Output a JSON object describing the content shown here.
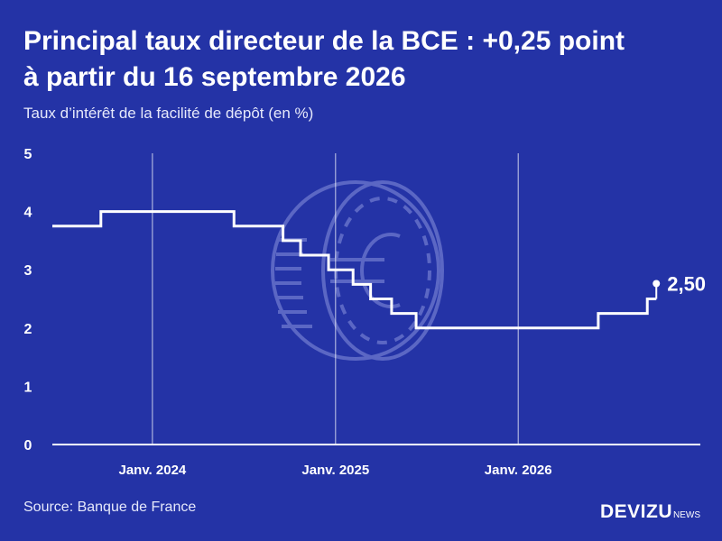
{
  "header": {
    "title_line1": "Principal taux directeur de la BCE : +0,25 point",
    "title_line2": "à partir du 16 septembre 2026",
    "subtitle": "Taux d’intérêt de la facilité de dépôt (en %)"
  },
  "footer": {
    "source": "Source: Banque de France",
    "brand_main": "DEVIZU",
    "brand_suffix": "NEWS"
  },
  "colors": {
    "background": "#2433a6",
    "line": "#ffffff",
    "coin_outline": "#5b67c4"
  },
  "icons": [
    "euro-coin-icon"
  ],
  "chart_data": {
    "type": "line",
    "step": true,
    "title": "Principal taux directeur de la BCE : +0,25 point à partir du 16 septembre 2026",
    "ylabel": "Taux d’intérêt de la facilité de dépôt (en %)",
    "xlabel": "",
    "xlim": [
      "2023-06-15",
      "2026-12-31"
    ],
    "ylim": [
      0,
      5
    ],
    "yticks": [
      0,
      1,
      2,
      3,
      4,
      5
    ],
    "xticks": [
      {
        "date": "2024-01-01",
        "label": "Janv. 2024"
      },
      {
        "date": "2025-01-01",
        "label": "Janv. 2025"
      },
      {
        "date": "2026-01-01",
        "label": "Janv. 2026"
      }
    ],
    "grid": "vertical",
    "series": [
      {
        "points": [
          {
            "date": "2023-06-15",
            "value": 3.75
          },
          {
            "date": "2023-09-20",
            "value": 4.0
          },
          {
            "date": "2024-06-12",
            "value": 3.75
          },
          {
            "date": "2024-09-18",
            "value": 3.5
          },
          {
            "date": "2024-10-23",
            "value": 3.25
          },
          {
            "date": "2024-12-18",
            "value": 3.0
          },
          {
            "date": "2025-02-05",
            "value": 2.75
          },
          {
            "date": "2025-03-12",
            "value": 2.5
          },
          {
            "date": "2025-04-23",
            "value": 2.25
          },
          {
            "date": "2025-06-11",
            "value": 2.0
          },
          {
            "date": "2026-06-10",
            "value": 2.25
          },
          {
            "date": "2026-09-16",
            "value": 2.5
          }
        ],
        "end_label": "2,50"
      }
    ]
  }
}
